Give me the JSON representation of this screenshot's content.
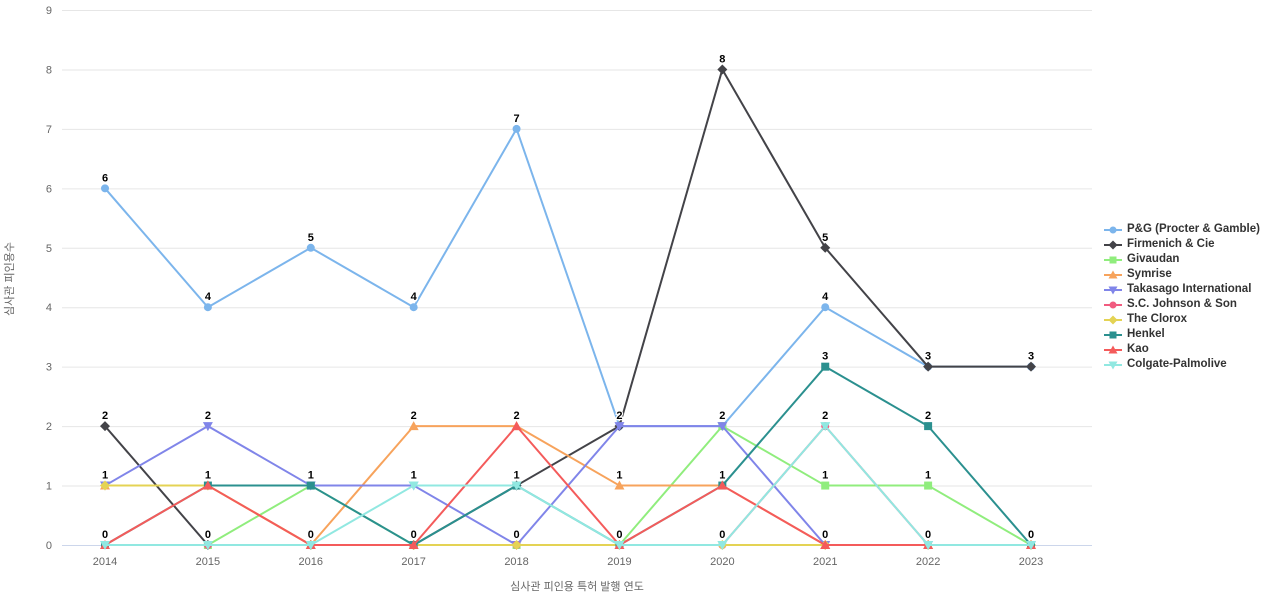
{
  "chart_data": {
    "type": "line",
    "x": [
      2014,
      2015,
      2016,
      2017,
      2018,
      2019,
      2020,
      2021,
      2022,
      2023
    ],
    "xlabel": "심사관 피인용 특허 발행 연도",
    "ylabel": "심사관 피인용수",
    "ylim": [
      0,
      9
    ],
    "yticks": [
      0,
      1,
      2,
      3,
      4,
      5,
      6,
      7,
      8,
      9
    ],
    "grid": "horizontal",
    "legend_position": "right",
    "data_labels": "on",
    "series": [
      {
        "name": "P&G (Procter & Gamble)",
        "color": "#7cb5ec",
        "marker": "circle",
        "values": [
          6,
          4,
          5,
          4,
          7,
          2,
          2,
          4,
          3,
          3
        ]
      },
      {
        "name": "Firmenich & Cie",
        "color": "#434348",
        "marker": "diamond",
        "values": [
          2,
          0,
          0,
          0,
          1,
          2,
          8,
          5,
          3,
          3
        ]
      },
      {
        "name": "Givaudan",
        "color": "#90ed7d",
        "marker": "square",
        "values": [
          0,
          0,
          1,
          0,
          0,
          0,
          2,
          1,
          1,
          0
        ]
      },
      {
        "name": "Symrise",
        "color": "#f7a35c",
        "marker": "triangle",
        "values": [
          1,
          1,
          0,
          2,
          2,
          1,
          1,
          0,
          0,
          0
        ]
      },
      {
        "name": "Takasago International",
        "color": "#8085e9",
        "marker": "triangle-down",
        "values": [
          1,
          2,
          1,
          1,
          0,
          2,
          2,
          0,
          0,
          0
        ]
      },
      {
        "name": "S.C. Johnson & Son",
        "color": "#f15c80",
        "marker": "circle",
        "values": [
          0,
          0,
          0,
          0,
          0,
          0,
          0,
          2,
          0,
          0
        ]
      },
      {
        "name": "The Clorox",
        "color": "#e4d354",
        "marker": "diamond",
        "values": [
          1,
          1,
          0,
          0,
          0,
          0,
          0,
          0,
          0,
          0
        ]
      },
      {
        "name": "Henkel",
        "color": "#2b908f",
        "marker": "square",
        "values": [
          0,
          1,
          1,
          0,
          1,
          0,
          1,
          3,
          2,
          0
        ]
      },
      {
        "name": "Kao",
        "color": "#f45b5b",
        "marker": "triangle",
        "values": [
          0,
          1,
          0,
          0,
          2,
          0,
          1,
          0,
          0,
          0
        ]
      },
      {
        "name": "Colgate-Palmolive",
        "color": "#91e8e1",
        "marker": "triangle-down",
        "values": [
          0,
          0,
          0,
          1,
          1,
          0,
          0,
          2,
          0,
          0
        ]
      }
    ],
    "colors": {
      "grid": "#e6e6e6",
      "axis_line": "#ccd6eb",
      "tick_label": "#666666",
      "data_label": "#000000",
      "legend_text": "#333333"
    }
  }
}
